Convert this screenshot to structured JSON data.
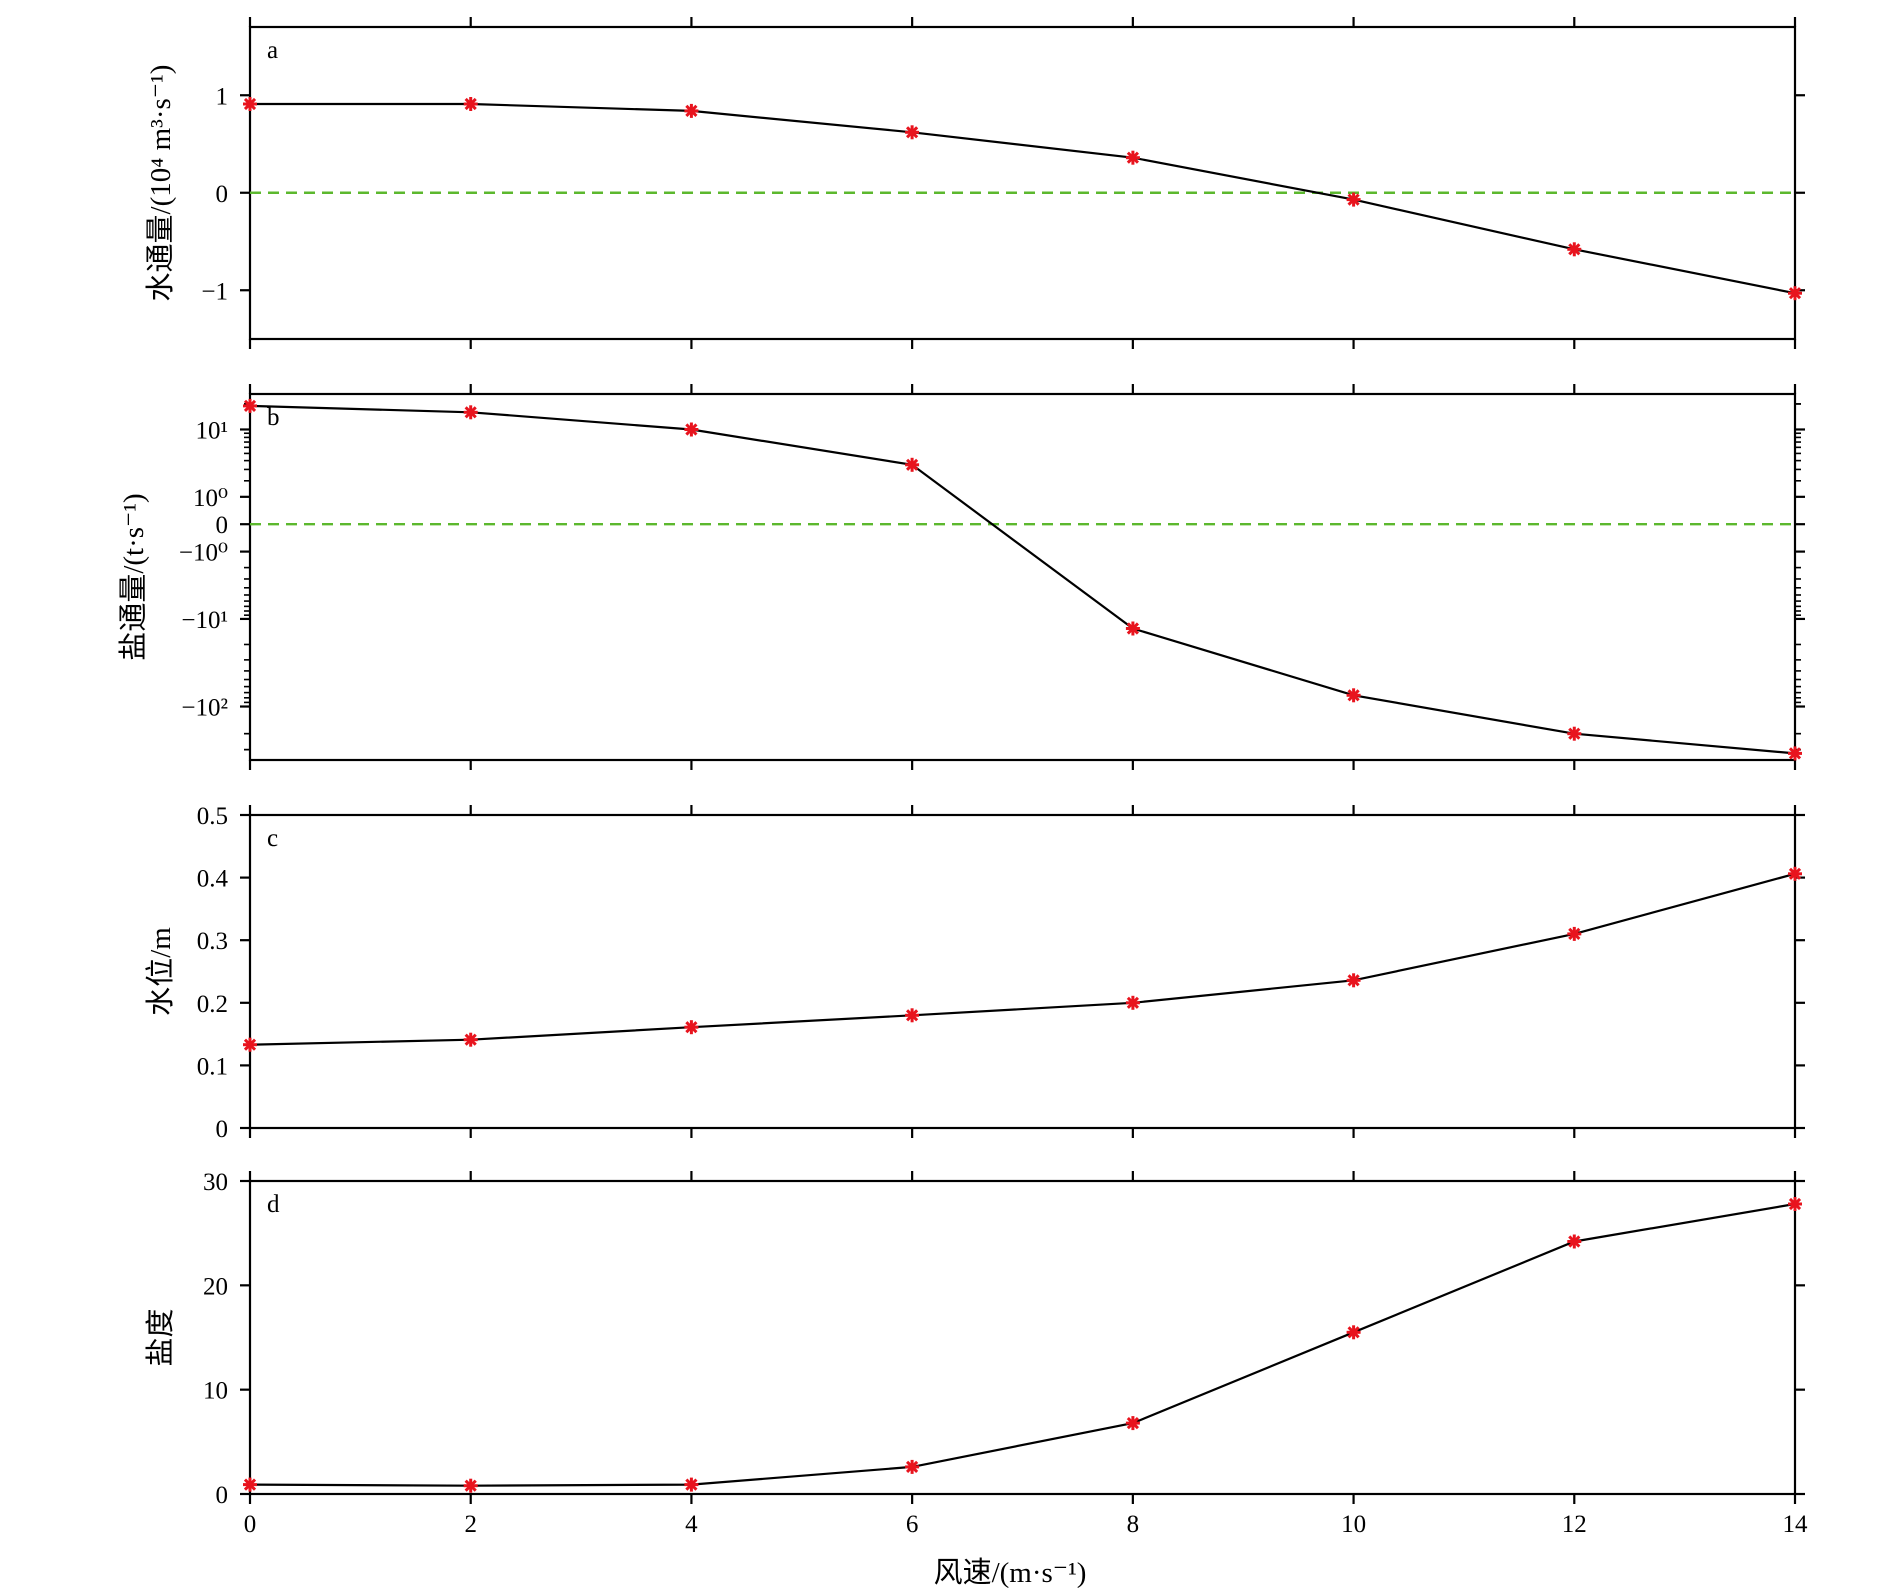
{
  "figure": {
    "xlabel": "风速/(m·s⁻¹)",
    "x_ticks": [
      "0",
      "2",
      "4",
      "6",
      "8",
      "10",
      "12",
      "14"
    ],
    "marker_color": "#e8141e",
    "line_color": "#000000",
    "zero_line_color": "#5cb82e"
  },
  "chart_data": [
    {
      "type": "line",
      "panel": "a",
      "ylabel": "水通量/(10⁴ m³·s⁻¹)",
      "x": [
        0,
        2,
        4,
        6,
        8,
        10,
        12,
        14
      ],
      "y": [
        0.91,
        0.91,
        0.84,
        0.62,
        0.36,
        -0.07,
        -0.58,
        -1.03
      ],
      "xlim": [
        0,
        14
      ],
      "ylim": [
        -1.5,
        1.7
      ],
      "y_ticks": [
        "−1",
        "0",
        "1"
      ],
      "zero_line": true
    },
    {
      "type": "line",
      "panel": "b",
      "ylabel": "盐通量/(t·s⁻¹)",
      "scale": "symlog",
      "x": [
        0,
        2,
        4,
        6,
        8,
        10,
        12,
        14
      ],
      "y": [
        19,
        16,
        10,
        3.5,
        -13,
        -75,
        -200,
        -330
      ],
      "xlim": [
        0,
        14
      ],
      "y_ticks": [
        "10¹",
        "10⁰",
        "0",
        "−10⁰",
        "−10¹",
        "−10²"
      ],
      "zero_line": true
    },
    {
      "type": "line",
      "panel": "c",
      "ylabel": "水位/m",
      "x": [
        0,
        2,
        4,
        6,
        8,
        10,
        12,
        14
      ],
      "y": [
        0.133,
        0.141,
        0.161,
        0.18,
        0.2,
        0.236,
        0.31,
        0.406
      ],
      "xlim": [
        0,
        14
      ],
      "ylim": [
        0,
        0.5
      ],
      "y_ticks": [
        "0",
        "0.1",
        "0.2",
        "0.3",
        "0.4",
        "0.5"
      ],
      "zero_line": false
    },
    {
      "type": "line",
      "panel": "d",
      "ylabel": "盐度",
      "x": [
        0,
        2,
        4,
        6,
        8,
        10,
        12,
        14
      ],
      "y": [
        0.9,
        0.8,
        0.9,
        2.6,
        6.8,
        15.5,
        24.2,
        27.8
      ],
      "xlim": [
        0,
        14
      ],
      "ylim": [
        0,
        30
      ],
      "y_ticks": [
        "0",
        "10",
        "20",
        "30"
      ],
      "zero_line": false
    }
  ]
}
